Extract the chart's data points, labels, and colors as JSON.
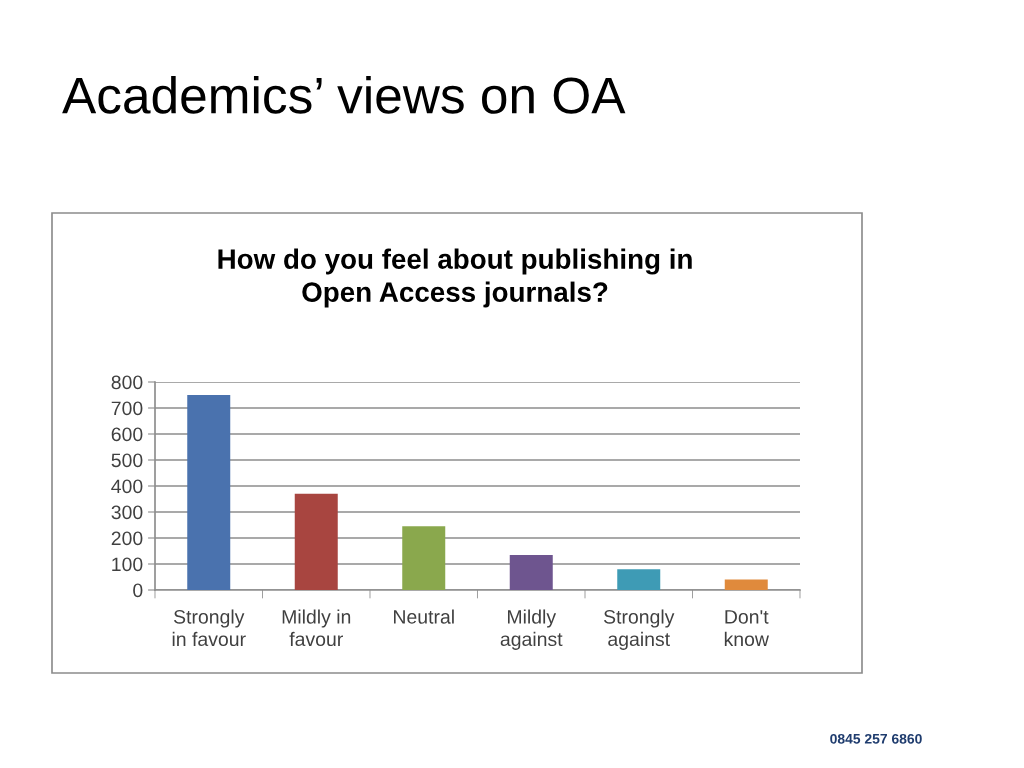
{
  "chart_data": {
    "type": "bar",
    "title": "Academics’ views on OA",
    "subtitle": "How do you feel about publishing in\nOpen Access journals?",
    "categories": [
      "Strongly\nin favour",
      "Mildly in\nfavour",
      "Neutral",
      "Mildly\nagainst",
      "Strongly\nagainst",
      "Don't\nknow"
    ],
    "values": [
      750,
      370,
      245,
      135,
      80,
      40
    ],
    "colors": [
      "#4a72ae",
      "#a84540",
      "#8aa84d",
      "#6e558f",
      "#3e9bb5",
      "#e08a3c"
    ],
    "ylim": [
      0,
      800
    ],
    "yticks": [
      0,
      100,
      200,
      300,
      400,
      500,
      600,
      700,
      800
    ],
    "grid": "y",
    "legend": false,
    "annotations": [
      "0845 257 6860"
    ]
  }
}
